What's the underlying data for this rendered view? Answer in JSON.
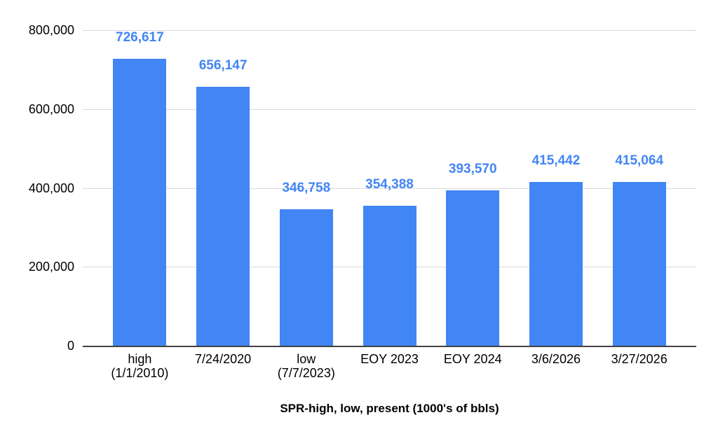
{
  "chart_data": {
    "type": "bar",
    "title": "SPR-high, low, present (1000's of bbls)",
    "categories": [
      [
        "high",
        "(1/1/2010)"
      ],
      [
        "7/24/2020"
      ],
      [
        "low",
        "(7/7/2023)"
      ],
      [
        "EOY 2023"
      ],
      [
        "EOY 2024"
      ],
      [
        "3/6/2026"
      ],
      [
        "3/27/2026"
      ]
    ],
    "values": [
      726617,
      656147,
      346758,
      354388,
      393570,
      415442,
      415064
    ],
    "data_labels": [
      "726,617",
      "656,147",
      "346,758",
      "354,388",
      "393,570",
      "415,442",
      "415,064"
    ],
    "xlabel": "",
    "ylabel": "",
    "ylim": [
      0,
      800000
    ],
    "y_ticks": [
      {
        "value": 800000,
        "label": "800,000"
      },
      {
        "value": 600000,
        "label": "600,000"
      },
      {
        "value": 400000,
        "label": "400,000"
      },
      {
        "value": 200000,
        "label": "200,000"
      },
      {
        "value": 0,
        "label": "0"
      }
    ],
    "grid": true,
    "legend_position": "none",
    "colors": {
      "bar": "#4285f4",
      "data_label": "#4285f4",
      "gridline": "#dadada",
      "axis_line": "#424242",
      "tick_text": "#000000",
      "title_text": "#000000",
      "background": "#ffffff"
    }
  }
}
